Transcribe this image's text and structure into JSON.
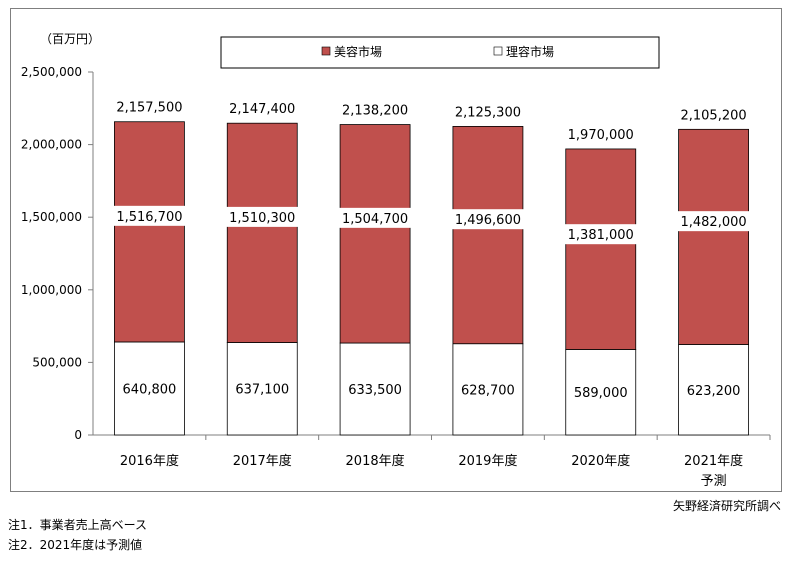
{
  "chart_data": {
    "type": "bar",
    "stacked": true,
    "unit_label": "（百万円）",
    "ylim": [
      0,
      2500000
    ],
    "yticks": [
      0,
      500000,
      1000000,
      1500000,
      2000000,
      2500000
    ],
    "ytick_labels": [
      "0",
      "500,000",
      "1,000,000",
      "1,500,000",
      "2,000,000",
      "2,500,000"
    ],
    "categories": [
      "2016年度",
      "2017年度",
      "2018年度",
      "2019年度",
      "2020年度",
      "2021年度\n予測"
    ],
    "series": [
      {
        "name": "理容市場",
        "color": "#ffffff",
        "values": [
          640800,
          637100,
          633500,
          628700,
          589000,
          623200
        ],
        "labels": [
          "640,800",
          "637,100",
          "633,500",
          "628,700",
          "589,000",
          "623,200"
        ]
      },
      {
        "name": "美容市場",
        "color": "#c0504d",
        "values": [
          1516700,
          1510300,
          1504700,
          1496600,
          1381000,
          1482000
        ],
        "labels": [
          "1,516,700",
          "1,510,300",
          "1,504,700",
          "1,496,600",
          "1,381,000",
          "1,482,000"
        ]
      }
    ],
    "totals": [
      2157500,
      2147400,
      2138200,
      2125300,
      1970000,
      2105200
    ],
    "total_labels": [
      "2,157,500",
      "2,147,400",
      "2,138,200",
      "2,125,300",
      "1,970,000",
      "2,105,200"
    ],
    "legend": {
      "position": "top",
      "order": [
        "美容市場",
        "理容市場"
      ]
    },
    "grid": false
  },
  "source": "矢野経済研究所調べ",
  "notes": [
    "注1．事業者売上高ベース",
    "注2．2021年度は予測値"
  ]
}
